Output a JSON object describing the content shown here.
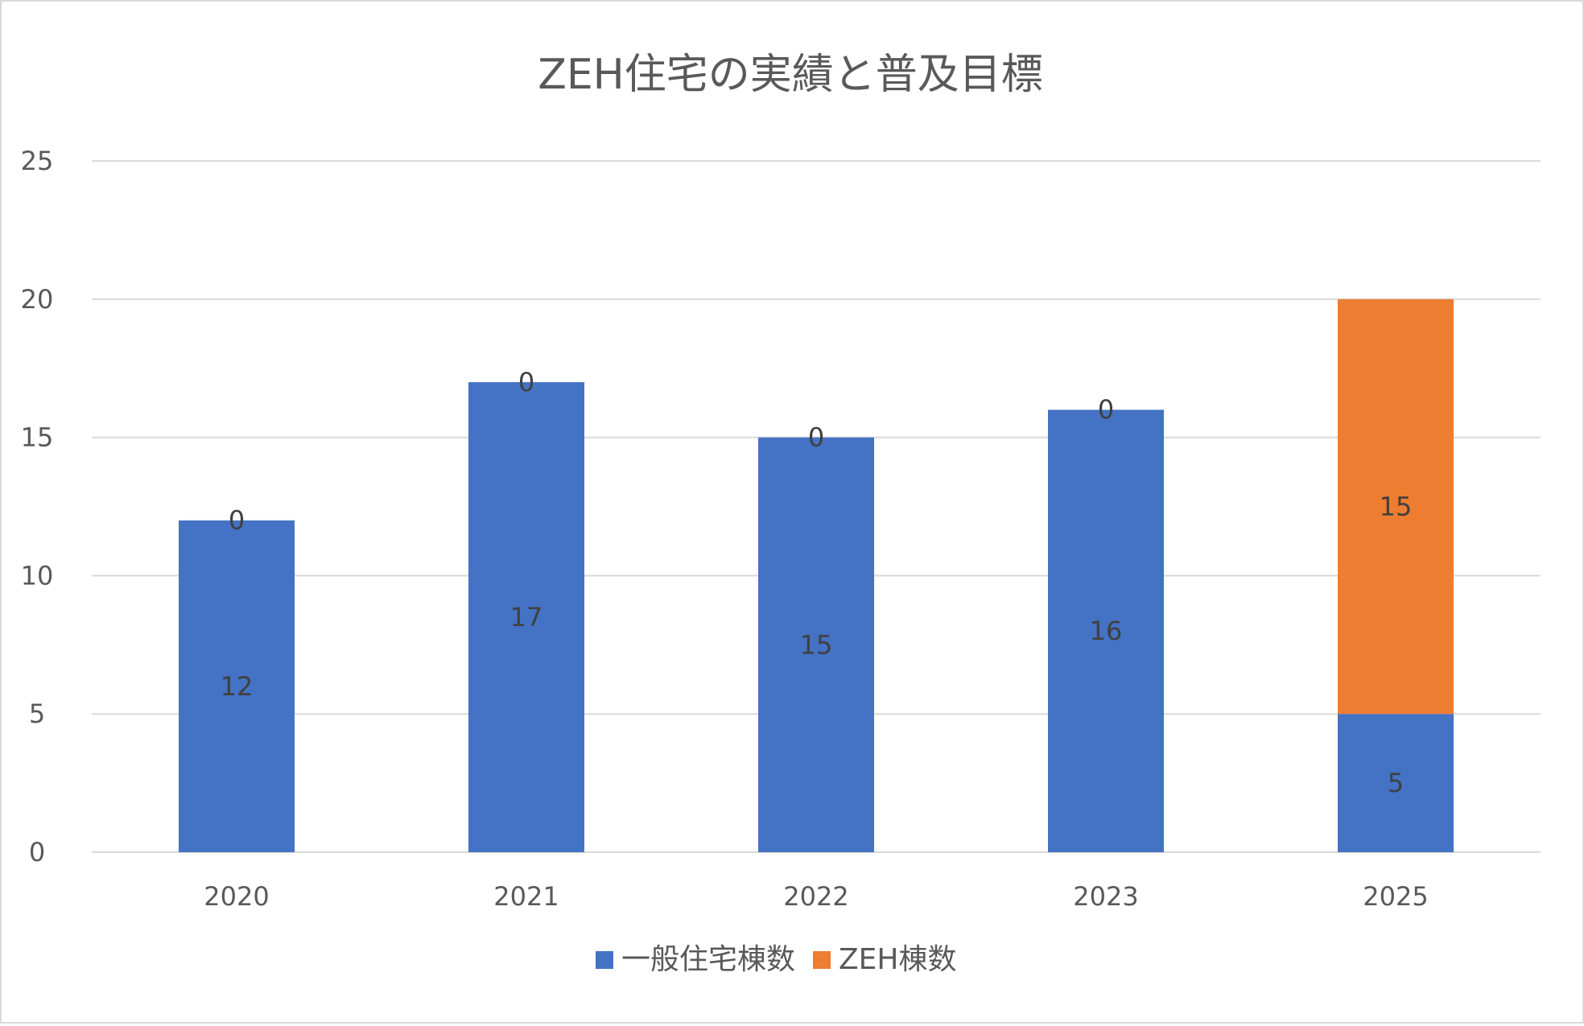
{
  "chart_data": {
    "type": "bar",
    "stacked": true,
    "title": "ZEH住宅の実績と普及目標",
    "xlabel": "",
    "ylabel": "",
    "categories": [
      "2020",
      "2021",
      "2022",
      "2023",
      "2025"
    ],
    "series": [
      {
        "name": "一般住宅棟数",
        "values": [
          12,
          17,
          15,
          16,
          5
        ],
        "color": "#4472C4"
      },
      {
        "name": "ZEH棟数",
        "values": [
          0,
          0,
          0,
          0,
          15
        ],
        "color": "#ED7D31"
      }
    ],
    "ylim": [
      0,
      25
    ],
    "yticks": [
      0,
      5,
      10,
      15,
      20,
      25
    ],
    "grid": true,
    "legend": "bottom",
    "data_labels": true
  },
  "colors": {
    "gridline": "#d9d9d9",
    "text": "#595959",
    "label": "#404040"
  }
}
